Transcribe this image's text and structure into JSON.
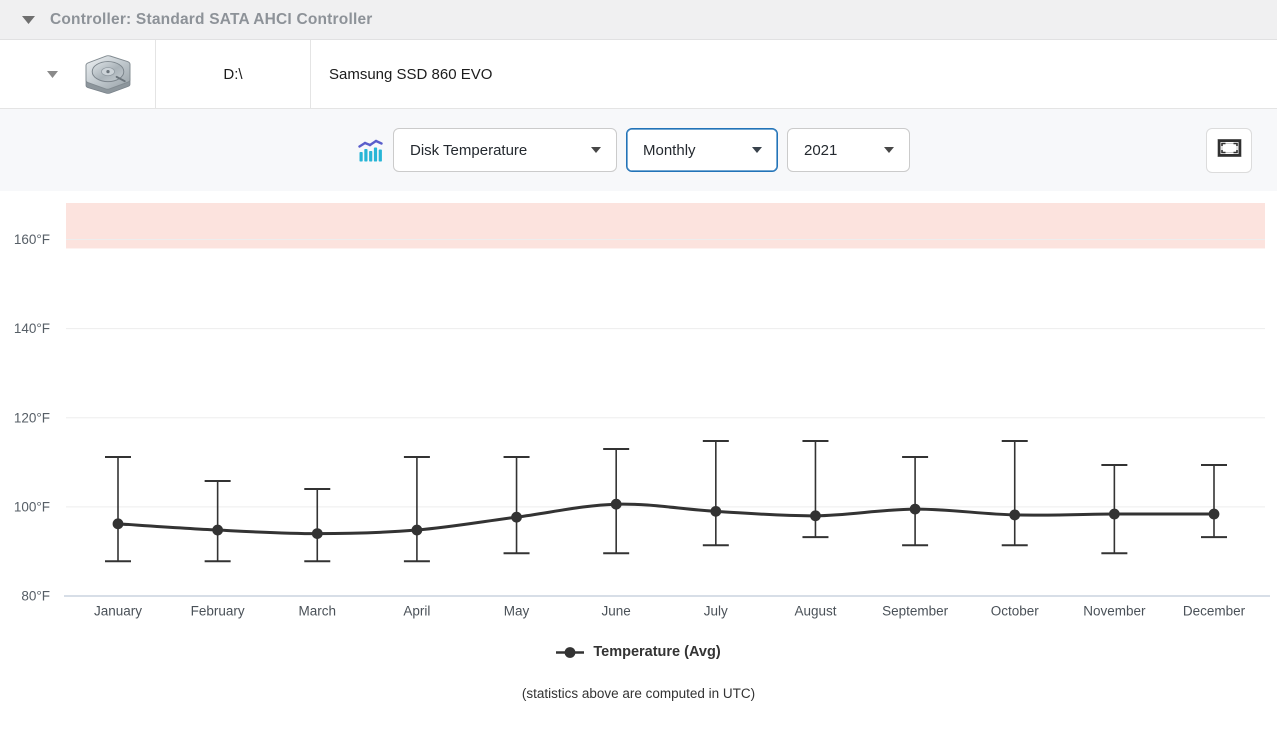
{
  "header": {
    "controller_label": "Controller: Standard SATA AHCI Controller"
  },
  "device_row": {
    "drive_letter": "D:\\",
    "model": "Samsung SSD 860 EVO"
  },
  "toolbar": {
    "metric_select": {
      "value": "Disk Temperature"
    },
    "period_select": {
      "value": "Monthly",
      "focused": true,
      "focus_color": "#2273b8"
    },
    "year_select": {
      "value": "2021"
    }
  },
  "chart_data": {
    "type": "line",
    "title": "",
    "categories": [
      "January",
      "February",
      "March",
      "April",
      "May",
      "June",
      "July",
      "August",
      "September",
      "October",
      "November",
      "December"
    ],
    "series": [
      {
        "name": "Temperature (Avg)",
        "color": "#333333",
        "values": [
          96.2,
          94.8,
          94.0,
          94.8,
          97.7,
          100.6,
          99.0,
          98.0,
          99.5,
          98.2,
          98.4,
          98.4
        ]
      }
    ],
    "error_bars": {
      "high": [
        111.2,
        105.8,
        104.0,
        111.2,
        111.2,
        113.0,
        114.8,
        114.8,
        111.2,
        114.8,
        109.4,
        109.4
      ],
      "low": [
        87.8,
        87.8,
        87.8,
        87.8,
        89.6,
        89.6,
        91.4,
        93.2,
        91.4,
        91.4,
        89.6,
        93.2
      ]
    },
    "unit": "°F",
    "yticks": [
      80,
      100,
      120,
      140,
      160
    ],
    "ylim": [
      80,
      168.2
    ],
    "danger_zone": {
      "from": 158,
      "color": "#fce3de"
    },
    "grid_color": "#ededed",
    "axis_color": "#d7dee7",
    "tick_label_color": "#565e66",
    "legend": [
      {
        "label": "Temperature (Avg)"
      }
    ],
    "legend_position": "bottom"
  },
  "footer": {
    "note": "(statistics above are computed in UTC)"
  }
}
